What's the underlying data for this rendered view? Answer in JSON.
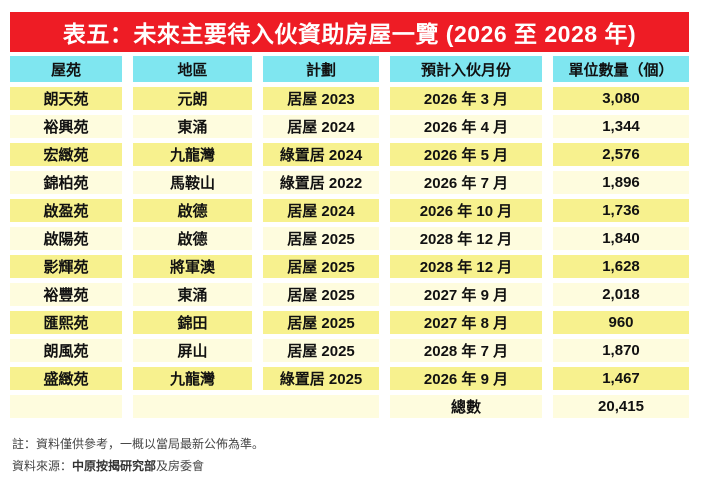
{
  "title": "表五：未來主要待入伙資助房屋一覽 (2026 至 2028 年)",
  "chart_data": {
    "type": "table",
    "title": "表五：未來主要待入伙資助房屋一覽 (2026 至 2028 年)",
    "columns": [
      "屋苑",
      "地區",
      "計劃",
      "預計入伙月份",
      "單位數量（個）"
    ],
    "rows": [
      [
        "朗天苑",
        "元朗",
        "居屋 2023",
        "2026 年 3 月",
        "3,080"
      ],
      [
        "裕興苑",
        "東涌",
        "居屋 2024",
        "2026 年 4 月",
        "1,344"
      ],
      [
        "宏緻苑",
        "九龍灣",
        "綠置居 2024",
        "2026 年 5 月",
        "2,576"
      ],
      [
        "錦柏苑",
        "馬鞍山",
        "綠置居 2022",
        "2026 年 7 月",
        "1,896"
      ],
      [
        "啟盈苑",
        "啟德",
        "居屋 2024",
        "2026 年 10 月",
        "1,736"
      ],
      [
        "啟陽苑",
        "啟德",
        "居屋 2025",
        "2028 年 12 月",
        "1,840"
      ],
      [
        "影輝苑",
        "將軍澳",
        "居屋 2025",
        "2028 年 12 月",
        "1,628"
      ],
      [
        "裕豐苑",
        "東涌",
        "居屋 2025",
        "2027 年 9 月",
        "2,018"
      ],
      [
        "匯熙苑",
        "錦田",
        "居屋 2025",
        "2027 年 8 月",
        "960"
      ],
      [
        "朗風苑",
        "屏山",
        "居屋 2025",
        "2028 年 7 月",
        "1,870"
      ],
      [
        "盛緻苑",
        "九龍灣",
        "綠置居 2025",
        "2026 年 9 月",
        "1,467"
      ]
    ],
    "total_row": {
      "label": "總數",
      "value": "20,415"
    },
    "units_total": 20415
  },
  "notes": {
    "note1": "註：資料僅供參考，一概以當局最新公佈為準。",
    "source_prefix": "資料來源：",
    "source_bold": "中原按揭研究部",
    "source_suffix": "及房委會"
  },
  "colors": {
    "title_bg": "#EE1C25",
    "title_text": "#FFFFFF",
    "header_bg": "#7FE6F0",
    "row_odd_bg": "#F7F18E",
    "row_even_bg": "#FEFCDE",
    "body_text": "#111111"
  }
}
